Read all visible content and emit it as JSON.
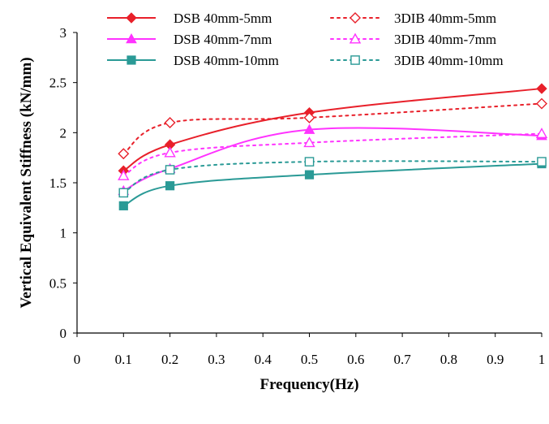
{
  "chart_data": {
    "type": "line",
    "xlabel": "Frequency(Hz)",
    "ylabel": "Vertical Equivalent Stiffness (kN/mm)",
    "xlim": [
      0,
      1
    ],
    "ylim": [
      0,
      3
    ],
    "x_ticks": [
      "0",
      "0.1",
      "0.2",
      "0.3",
      "0.4",
      "0.5",
      "0.6",
      "0.7",
      "0.8",
      "0.9",
      "1"
    ],
    "y_ticks": [
      "0",
      "0.5",
      "1",
      "1.5",
      "2",
      "2.5",
      "3"
    ],
    "grid": false,
    "legend_position": "top",
    "x": [
      0.1,
      0.2,
      0.5,
      1.0
    ],
    "series": [
      {
        "name": "DSB 40mm-5mm",
        "color": "#e8202a",
        "dash": "solid",
        "marker": "diamond",
        "filled": true,
        "values": [
          1.62,
          1.88,
          2.2,
          2.44
        ]
      },
      {
        "name": "3DIB 40mm-5mm",
        "color": "#e8202a",
        "dash": "dotted",
        "marker": "diamond",
        "filled": false,
        "values": [
          1.79,
          2.1,
          2.15,
          2.29
        ]
      },
      {
        "name": "DSB 40mm-7mm",
        "color": "#ff33ff",
        "dash": "solid",
        "marker": "triangle",
        "filled": true,
        "values": [
          1.42,
          1.64,
          2.03,
          1.97
        ]
      },
      {
        "name": "3DIB 40mm-7mm",
        "color": "#ff33ff",
        "dash": "dotted",
        "marker": "triangle",
        "filled": false,
        "values": [
          1.57,
          1.8,
          1.9,
          1.99
        ]
      },
      {
        "name": "DSB 40mm-10mm",
        "color": "#2a9a96",
        "dash": "solid",
        "marker": "square",
        "filled": true,
        "values": [
          1.27,
          1.47,
          1.58,
          1.69
        ]
      },
      {
        "name": "3DIB 40mm-10mm",
        "color": "#2a9a96",
        "dash": "dotted",
        "marker": "square",
        "filled": false,
        "values": [
          1.4,
          1.63,
          1.71,
          1.71
        ]
      }
    ]
  }
}
